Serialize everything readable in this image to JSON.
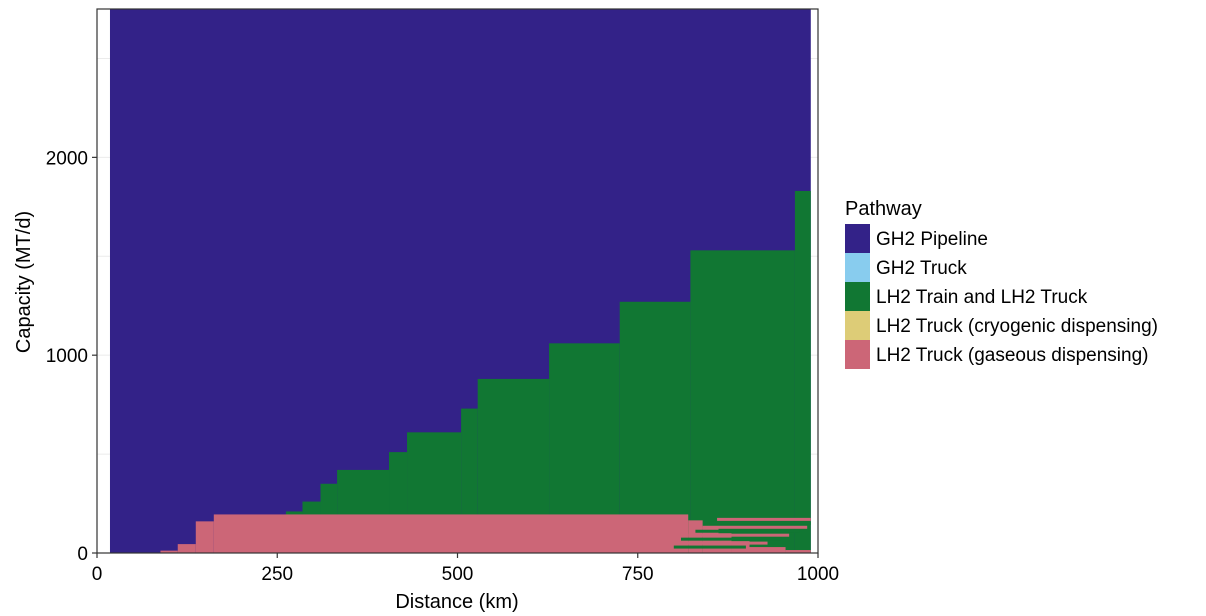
{
  "chart_data": {
    "type": "area",
    "xlabel": "Distance (km)",
    "ylabel": "Capacity (MT/d)",
    "xlim": [
      0,
      1000
    ],
    "ylim": [
      0,
      2750
    ],
    "x_ticks": [
      0,
      250,
      500,
      750,
      1000
    ],
    "y_ticks": [
      0,
      1000,
      2000
    ],
    "grid": true,
    "legend": {
      "title": "Pathway",
      "placement": "right"
    },
    "series": [
      {
        "name": "GH2 Pipeline",
        "color": "#332288",
        "note_region": "background"
      },
      {
        "name": "GH2 Truck",
        "color": "#88CCEE",
        "regions": []
      },
      {
        "name": "LH2 Train and LH2 Truck",
        "color": "#117733",
        "steps": [
          {
            "x0": 262,
            "x1": 285,
            "y": 210
          },
          {
            "x0": 285,
            "x1": 310,
            "y": 260
          },
          {
            "x0": 310,
            "x1": 333,
            "y": 350
          },
          {
            "x0": 333,
            "x1": 405,
            "y": 420
          },
          {
            "x0": 405,
            "x1": 430,
            "y": 510
          },
          {
            "x0": 430,
            "x1": 505,
            "y": 610
          },
          {
            "x0": 505,
            "x1": 528,
            "y": 730
          },
          {
            "x0": 528,
            "x1": 627,
            "y": 880
          },
          {
            "x0": 627,
            "x1": 725,
            "y": 1060
          },
          {
            "x0": 725,
            "x1": 823,
            "y": 1270
          },
          {
            "x0": 823,
            "x1": 968,
            "y": 1530
          },
          {
            "x0": 968,
            "x1": 990,
            "y": 1830
          }
        ]
      },
      {
        "name": "LH2 Truck (cryogenic dispensing)",
        "color": "#DDCC77",
        "regions": []
      },
      {
        "name": "LH2 Truck (gaseous dispensing)",
        "color": "#CC6677",
        "steps": [
          {
            "x0": 88,
            "x1": 112,
            "y": 12
          },
          {
            "x0": 112,
            "x1": 137,
            "y": 45
          },
          {
            "x0": 137,
            "x1": 162,
            "y": 160
          },
          {
            "x0": 162,
            "x1": 820,
            "y": 195
          },
          {
            "x0": 820,
            "x1": 840,
            "y": 165
          },
          {
            "x0": 840,
            "x1": 862,
            "y": 130
          },
          {
            "x0": 862,
            "x1": 880,
            "y": 100
          },
          {
            "x0": 880,
            "x1": 905,
            "y": 60
          },
          {
            "x0": 905,
            "x1": 955,
            "y": 30
          },
          {
            "x0": 955,
            "x1": 990,
            "y": 15
          }
        ],
        "stripes": [
          {
            "x0": 800,
            "x1": 900,
            "y": 30
          },
          {
            "x0": 800,
            "x1": 930,
            "y": 50
          },
          {
            "x0": 810,
            "x1": 950,
            "y": 70
          },
          {
            "x0": 820,
            "x1": 960,
            "y": 90
          },
          {
            "x0": 830,
            "x1": 975,
            "y": 110
          },
          {
            "x0": 840,
            "x1": 985,
            "y": 130
          },
          {
            "x0": 850,
            "x1": 990,
            "y": 150
          },
          {
            "x0": 860,
            "x1": 990,
            "y": 170
          }
        ]
      }
    ]
  }
}
